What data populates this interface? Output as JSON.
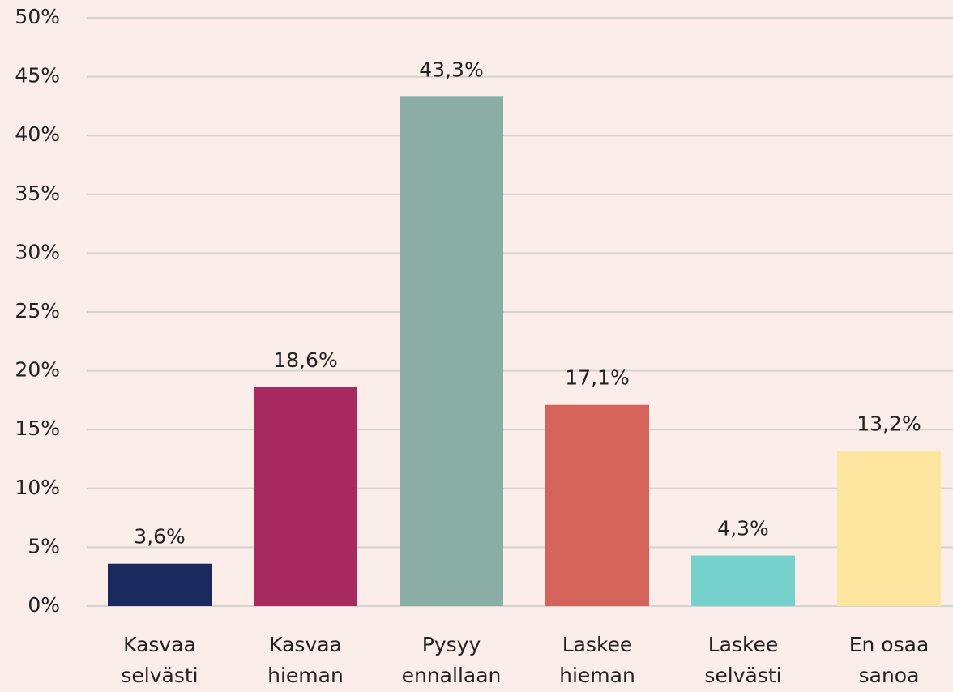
{
  "chart_data": {
    "type": "bar",
    "categories": [
      "Kasvaa\nselvästi",
      "Kasvaa\nhieman",
      "Pysyy\nennallaan",
      "Laskee\nhieman",
      "Laskee\nselvästi",
      "En osaa\nsanoa"
    ],
    "values": [
      3.6,
      18.6,
      43.3,
      17.1,
      4.3,
      13.2
    ],
    "value_labels": [
      "3,6%",
      "18,6%",
      "43,3%",
      "17,1%",
      "4,3%",
      "13,2%"
    ],
    "colors": [
      "#1b2a5e",
      "#a62a60",
      "#8aada6",
      "#d4645a",
      "#76d0cc",
      "#fee6a0"
    ],
    "ylim": [
      0,
      50
    ],
    "yticks": [
      {
        "value": 0,
        "label": "0%"
      },
      {
        "value": 5,
        "label": "5%"
      },
      {
        "value": 10,
        "label": "10%"
      },
      {
        "value": 15,
        "label": "15%"
      },
      {
        "value": 20,
        "label": "20%"
      },
      {
        "value": 25,
        "label": "25%"
      },
      {
        "value": 30,
        "label": "30%"
      },
      {
        "value": 35,
        "label": "35%"
      },
      {
        "value": 40,
        "label": "40%"
      },
      {
        "value": 45,
        "label": "45%"
      },
      {
        "value": 50,
        "label": "50%"
      }
    ],
    "grid": true
  }
}
